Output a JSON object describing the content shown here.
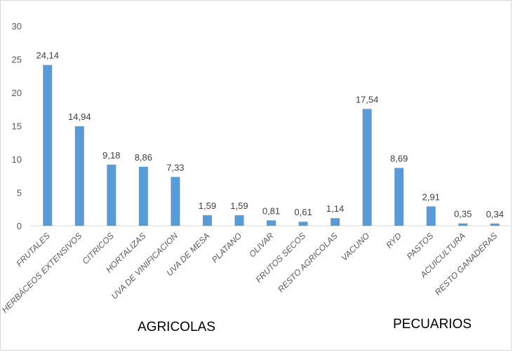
{
  "chart_data": {
    "type": "bar",
    "categories": [
      "FRUTALES",
      "HERBÁCEOS EXTENSIVOS",
      "CITRICOS",
      "HORTALIZAS",
      "UVA DE VINIFICACION",
      "UVA DE MESA",
      "PLATANO",
      "OLIVAR",
      "FRUTOS SECOS",
      "RESTO AGRICOLAS",
      "VACUNO",
      "RYD",
      "PASTOS",
      "ACUICULTURA",
      "RESTO GANADERAS"
    ],
    "values": [
      24.14,
      14.94,
      9.18,
      8.86,
      7.33,
      1.59,
      1.59,
      0.81,
      0.61,
      1.14,
      17.54,
      8.69,
      2.91,
      0.35,
      0.34
    ],
    "data_labels": [
      "24,14",
      "14,94",
      "9,18",
      "8,86",
      "7,33",
      "1,59",
      "1,59",
      "0,81",
      "0,61",
      "1,14",
      "17,54",
      "8,69",
      "2,91",
      "0,35",
      "0,34"
    ],
    "y_ticks": [
      "0",
      "5",
      "10",
      "15",
      "20",
      "25",
      "30"
    ],
    "ylim": [
      0,
      30
    ],
    "grid": false,
    "bar_color": "#5b9bd5",
    "groups": [
      "AGRICOLAS",
      "PECUARIOS"
    ]
  }
}
